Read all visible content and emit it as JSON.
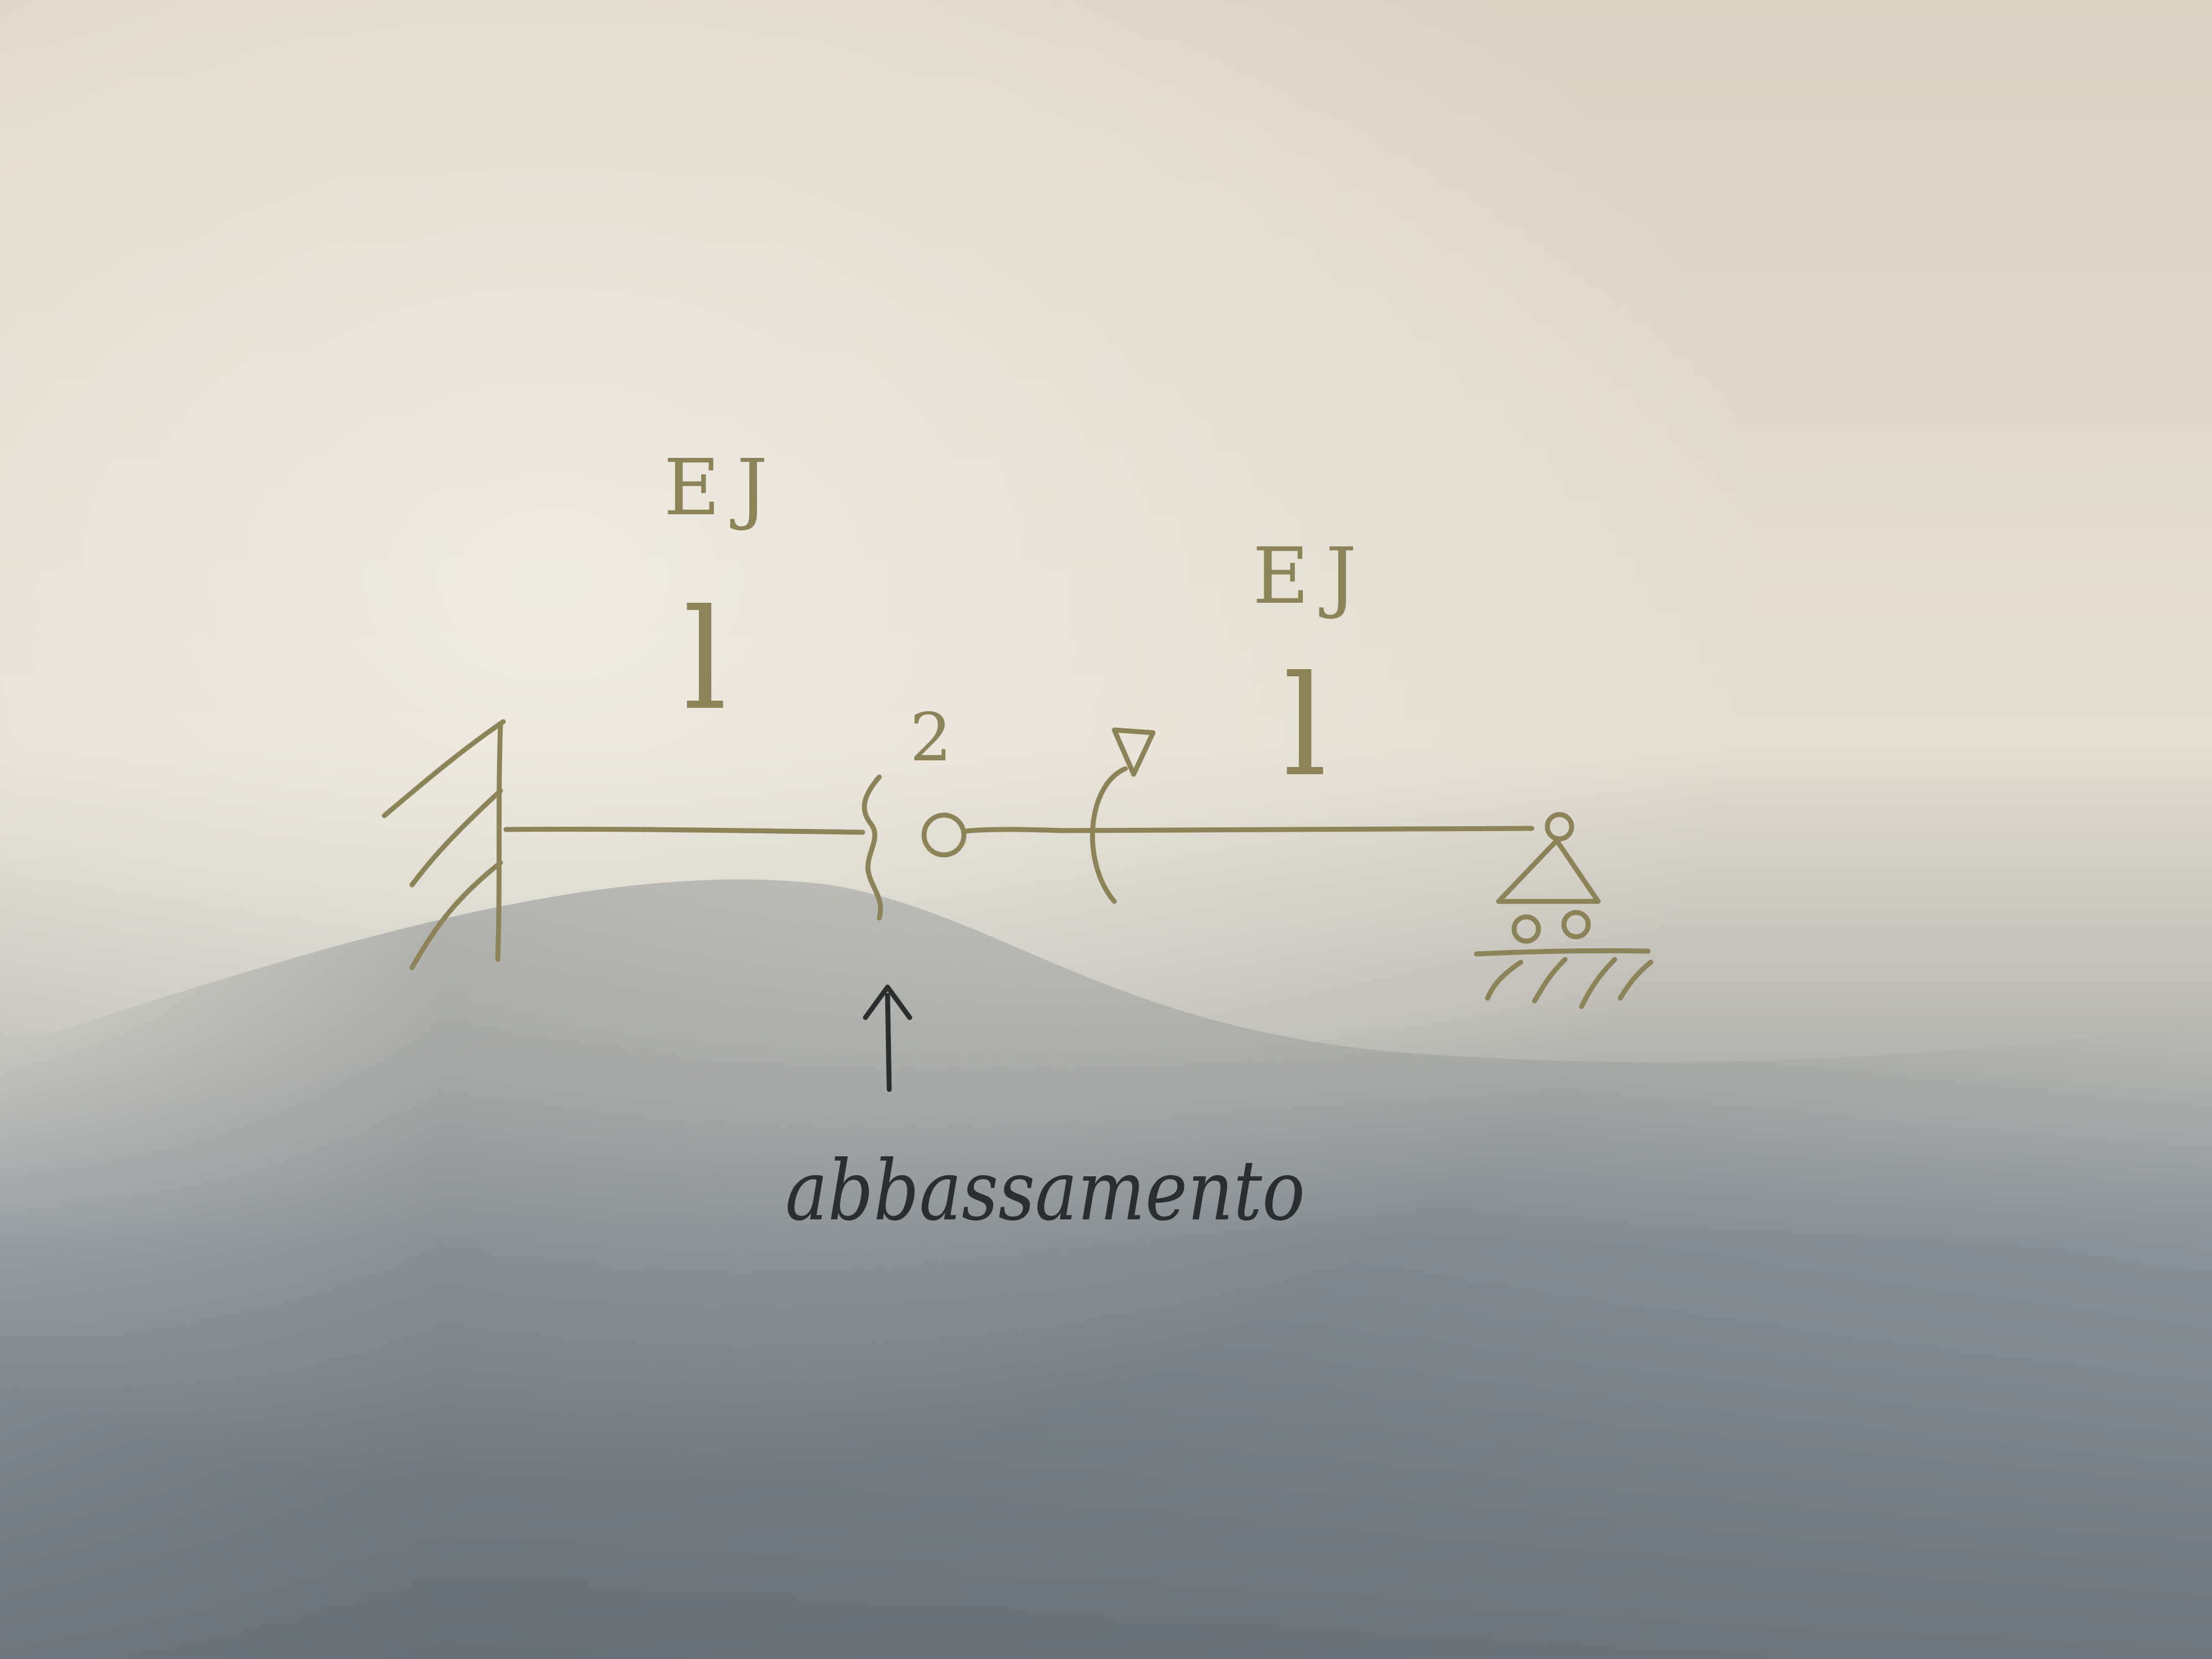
{
  "diagram": {
    "segment_left": {
      "stiffness_label": "EJ",
      "length_label": "l"
    },
    "segment_right": {
      "stiffness_label": "EJ",
      "length_label": "l"
    },
    "hinge_position_label": "2",
    "annotation": {
      "text": "abbassamento"
    },
    "colors": {
      "pencil": "#8c8458",
      "pen": "#2b2e2e"
    }
  }
}
